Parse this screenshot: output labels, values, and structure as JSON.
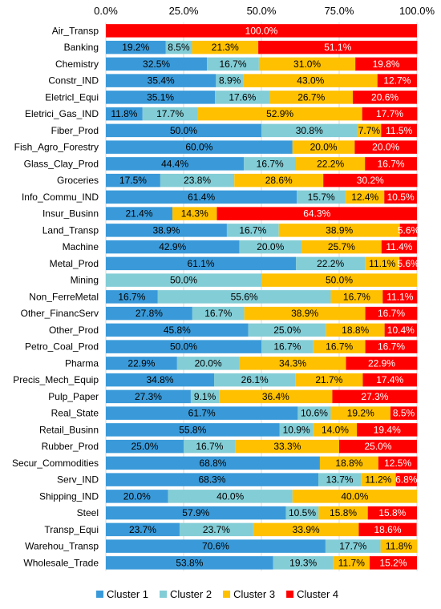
{
  "chart_data": {
    "type": "bar",
    "orientation": "horizontal",
    "stacked": true,
    "percent_stacked": true,
    "xlim": [
      0,
      100
    ],
    "x_ticks": [
      "0.0%",
      "25.0%",
      "50.0%",
      "75.0%",
      "100.0%"
    ],
    "x_axis_position": "top",
    "legend_position": "bottom",
    "grid": true,
    "colors": [
      "#3A9AD9",
      "#83CDD6",
      "#FFC000",
      "#FF0000"
    ],
    "categories": [
      "Air_Transp",
      "Banking",
      "Chemistry",
      "Constr_IND",
      "Eletricl_Equi",
      "Eletrici_Gas_IND",
      "Fiber_Prod",
      "Fish_Agro_Forestry",
      "Glass_Clay_Prod",
      "Groceries",
      "Info_Commu_IND",
      "Insur_Businn",
      "Land_Transp",
      "Machine",
      "Metal_Prod",
      "Mining",
      "Non_FerreMetal",
      "Other_FinancServ",
      "Other_Prod",
      "Petro_Coal_Prod",
      "Pharma",
      "Precis_Mech_Equip",
      "Pulp_Paper",
      "Real_State",
      "Retail_Businn",
      "Rubber_Prod",
      "Secur_Commodities",
      "Serv_IND",
      "Shipping_IND",
      "Steel",
      "Transp_Equi",
      "Warehou_Transp",
      "Wholesale_Trade"
    ],
    "series": [
      {
        "name": "Cluster 1",
        "values": [
          0,
          19.2,
          32.5,
          35.4,
          35.1,
          11.8,
          50.0,
          60.0,
          44.4,
          17.5,
          61.4,
          21.4,
          38.9,
          42.9,
          61.1,
          0,
          16.7,
          27.8,
          45.8,
          50.0,
          22.9,
          34.8,
          27.3,
          61.7,
          55.8,
          25.0,
          68.8,
          68.3,
          20.0,
          57.9,
          23.7,
          70.6,
          53.8
        ]
      },
      {
        "name": "Cluster 2",
        "values": [
          0,
          8.5,
          16.7,
          8.9,
          17.6,
          17.7,
          30.8,
          0,
          16.7,
          23.8,
          15.7,
          0,
          16.7,
          20.0,
          22.2,
          50.0,
          55.6,
          16.7,
          25.0,
          16.7,
          20.0,
          26.1,
          9.1,
          10.6,
          10.9,
          16.7,
          0,
          13.7,
          40.0,
          10.5,
          23.7,
          17.7,
          19.3
        ]
      },
      {
        "name": "Cluster 3",
        "values": [
          0,
          21.3,
          31.0,
          43.0,
          26.7,
          52.9,
          7.7,
          20.0,
          22.2,
          28.6,
          12.4,
          14.3,
          38.9,
          25.7,
          11.1,
          50.0,
          16.7,
          38.9,
          18.8,
          16.7,
          34.3,
          21.7,
          36.4,
          19.2,
          14.0,
          33.3,
          18.8,
          11.2,
          40.0,
          15.8,
          33.9,
          11.8,
          11.7
        ]
      },
      {
        "name": "Cluster 4",
        "values": [
          100.0,
          51.1,
          19.8,
          12.7,
          20.6,
          17.7,
          11.5,
          20.0,
          16.7,
          30.2,
          10.5,
          64.3,
          5.6,
          11.4,
          5.6,
          0,
          11.1,
          16.7,
          10.4,
          16.7,
          22.9,
          17.4,
          27.3,
          8.5,
          19.4,
          25.0,
          12.5,
          6.8,
          0,
          15.8,
          18.6,
          0,
          15.2
        ]
      }
    ]
  }
}
